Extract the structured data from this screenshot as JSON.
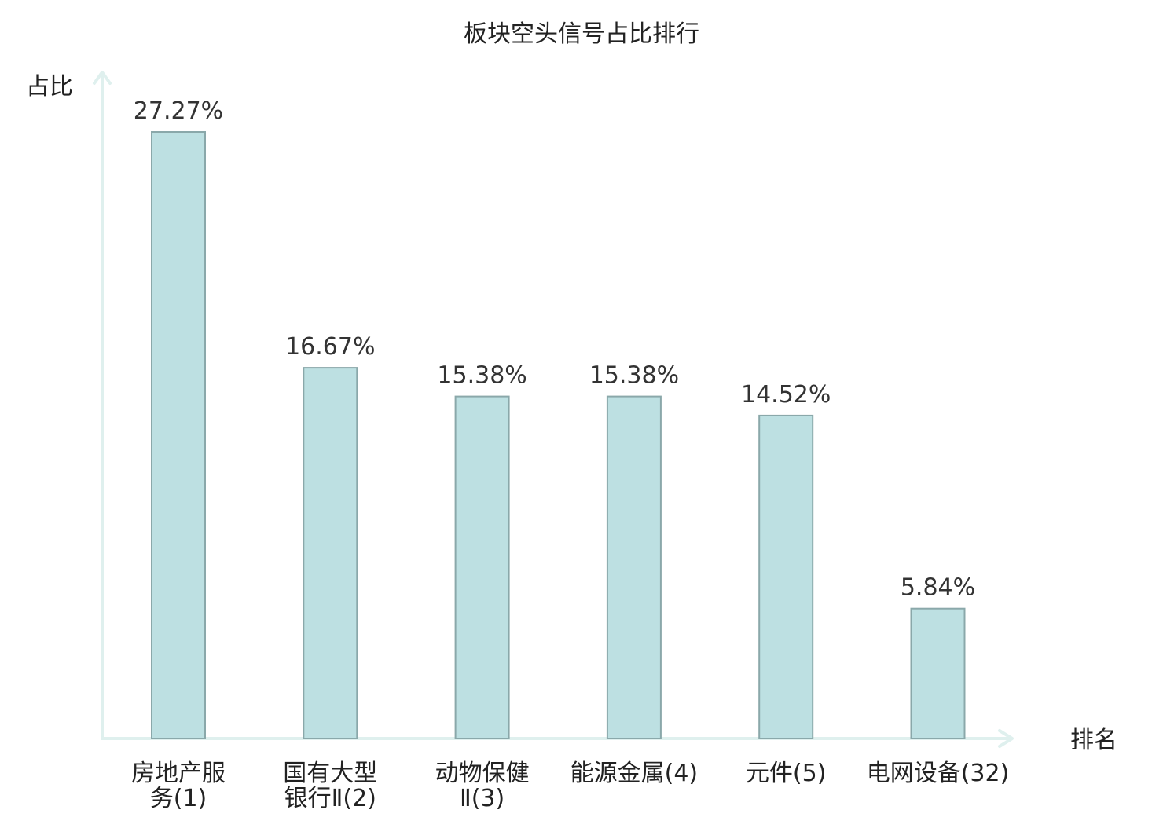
{
  "chart_data": {
    "type": "bar",
    "title": "板块空头信号占比排行",
    "ylabel": "占比",
    "xlabel": "排名",
    "categories": [
      {
        "lines": [
          "房地产服",
          "务(1)"
        ],
        "highlight": false
      },
      {
        "lines": [
          "国有大型",
          "银行Ⅱ(2)"
        ],
        "highlight": false
      },
      {
        "lines": [
          "动物保健",
          "Ⅱ(3)"
        ],
        "highlight": false
      },
      {
        "lines": [
          "能源金属(4)"
        ],
        "highlight": false
      },
      {
        "lines": [
          "元件(5)"
        ],
        "highlight": false
      },
      {
        "lines": [
          "电网设备(32)"
        ],
        "highlight": true
      }
    ],
    "values": [
      27.27,
      16.67,
      15.38,
      15.38,
      14.52,
      5.84
    ],
    "value_labels": [
      "27.27%",
      "16.67%",
      "15.38%",
      "15.38%",
      "14.52%",
      "5.84%"
    ],
    "ylim": [
      0,
      27.27
    ],
    "grid": false,
    "colors": {
      "bar_fill": "#bde0e2",
      "bar_stroke": "#8aa8aa",
      "axis": "#dff0ee",
      "highlight_text": "#e8141b",
      "text": "#222222"
    }
  }
}
